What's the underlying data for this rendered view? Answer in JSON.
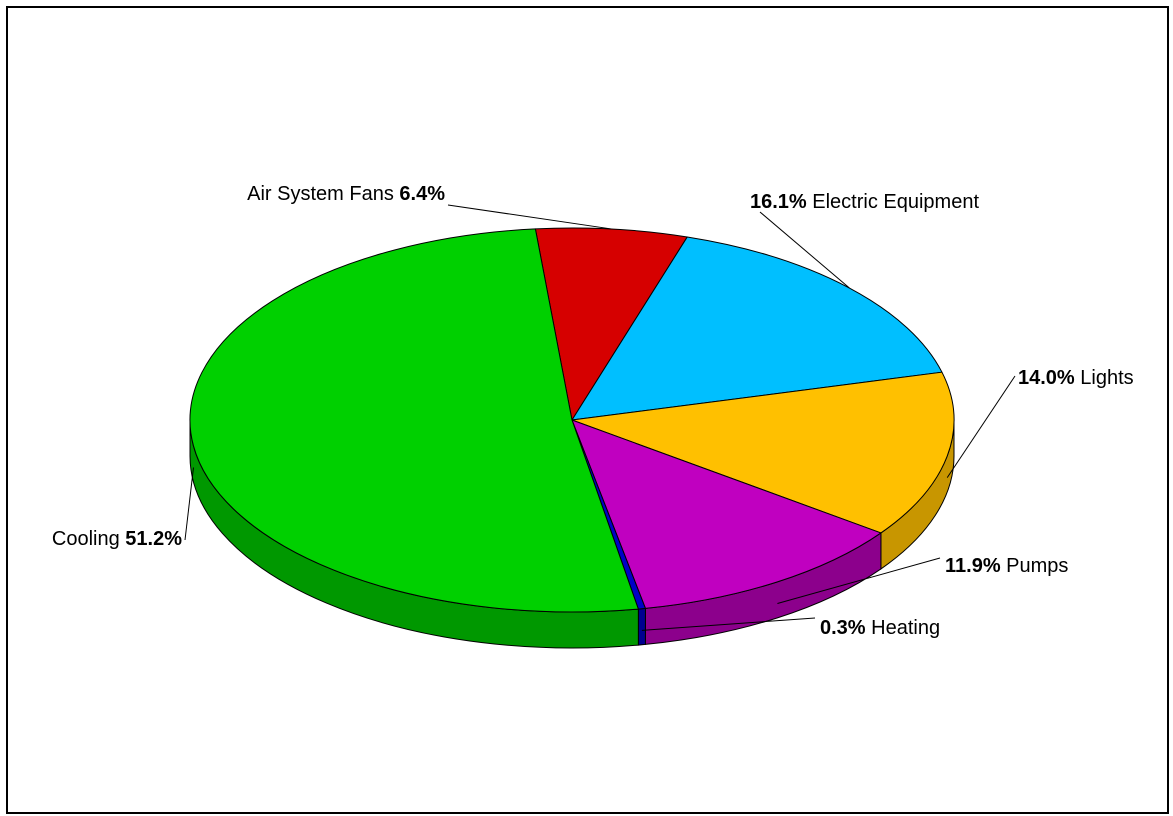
{
  "chart_data": {
    "type": "pie",
    "title": "",
    "slices": [
      {
        "label": "Air System Fans",
        "value": 6.4,
        "value_label": "6.4%",
        "color": "#d60000",
        "side_color": "#9b0000",
        "label_order": "name-first"
      },
      {
        "label": "Electric Equipment",
        "value": 16.1,
        "value_label": "16.1%",
        "color": "#00bfff",
        "side_color": "#0090c0",
        "label_order": "value-first"
      },
      {
        "label": "Lights",
        "value": 14.0,
        "value_label": "14.0%",
        "color": "#ffc000",
        "side_color": "#c89600",
        "label_order": "value-first"
      },
      {
        "label": "Pumps",
        "value": 11.9,
        "value_label": "11.9%",
        "color": "#c000c0",
        "side_color": "#8c008c",
        "label_order": "value-first"
      },
      {
        "label": "Heating",
        "value": 0.3,
        "value_label": "0.3%",
        "color": "#0000c8",
        "side_color": "#000090",
        "label_order": "value-first"
      },
      {
        "label": "Cooling",
        "value": 51.2,
        "value_label": "51.2%",
        "color": "#00d000",
        "side_color": "#009800",
        "label_order": "name-first"
      }
    ],
    "style": "3d-tilted",
    "legend": "none"
  }
}
